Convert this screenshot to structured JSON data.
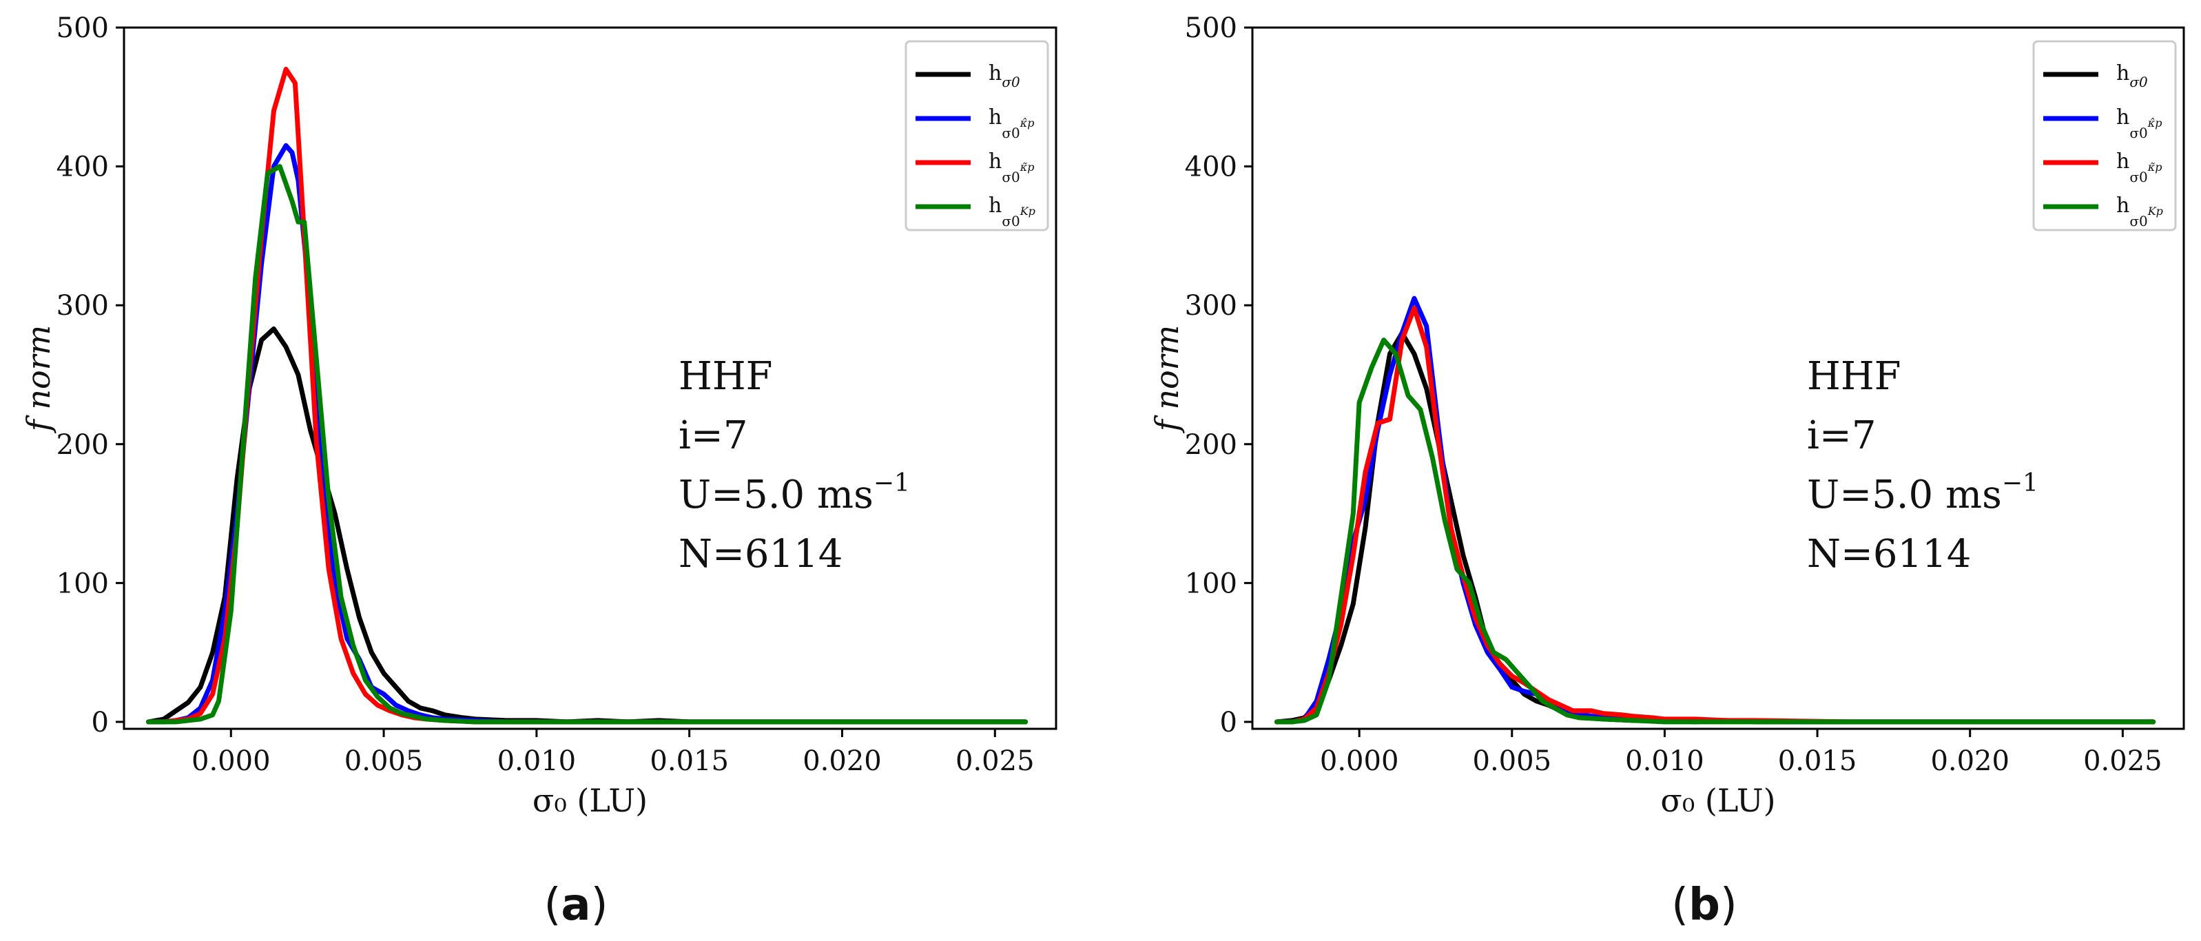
{
  "chart_data": [
    {
      "id": "a",
      "type": "line",
      "caption_letter": "a",
      "xlabel": "σ₀ (LU)",
      "ylabel": "f norm",
      "xlim": [
        -0.0035,
        0.027
      ],
      "ylim": [
        -5,
        500
      ],
      "xticks": [
        0.0,
        0.005,
        0.01,
        0.015,
        0.02,
        0.025
      ],
      "xtick_labels": [
        "0.000",
        "0.005",
        "0.010",
        "0.015",
        "0.020",
        "0.025"
      ],
      "yticks": [
        0,
        100,
        200,
        300,
        400,
        500
      ],
      "ytick_labels": [
        "0",
        "100",
        "200",
        "300",
        "400",
        "500"
      ],
      "annotation": [
        "HHF",
        "i=7",
        "U=5.0 ms",
        "N=6114"
      ],
      "annotation_superscript": "−1",
      "legend_position": "top-right",
      "series": [
        {
          "name": "h σ0",
          "label_sub": "σ0",
          "color": "#000000",
          "x": [
            -0.0027,
            -0.0022,
            -0.0018,
            -0.0014,
            -0.001,
            -0.0006,
            -0.0002,
            0.0002,
            0.0006,
            0.001,
            0.0014,
            0.0018,
            0.0022,
            0.0026,
            0.003,
            0.0034,
            0.0038,
            0.0042,
            0.0046,
            0.005,
            0.0054,
            0.0058,
            0.0062,
            0.0066,
            0.007,
            0.0076,
            0.008,
            0.009,
            0.01,
            0.011,
            0.012,
            0.013,
            0.014,
            0.015,
            0.026
          ],
          "values": [
            0,
            2,
            8,
            14,
            25,
            50,
            90,
            175,
            240,
            275,
            283,
            270,
            250,
            210,
            180,
            150,
            110,
            75,
            50,
            35,
            25,
            15,
            10,
            8,
            5,
            3,
            2,
            1,
            1,
            0,
            1,
            0,
            1,
            0,
            0
          ]
        },
        {
          "name": "h σ0 κ̂p",
          "label_sub": "σ0",
          "label_subsub": "κ̂p",
          "color": "#0000ff",
          "x": [
            -0.0027,
            -0.0022,
            -0.0018,
            -0.0014,
            -0.001,
            -0.0006,
            -0.0002,
            0.0002,
            0.0006,
            0.001,
            0.0014,
            0.0018,
            0.002,
            0.0022,
            0.0026,
            0.003,
            0.0034,
            0.0038,
            0.0042,
            0.0046,
            0.005,
            0.0054,
            0.0058,
            0.0062,
            0.0066,
            0.007,
            0.008,
            0.009,
            0.01,
            0.026
          ],
          "values": [
            0,
            0,
            1,
            3,
            10,
            30,
            80,
            150,
            240,
            330,
            400,
            415,
            410,
            390,
            300,
            170,
            100,
            60,
            45,
            25,
            20,
            12,
            8,
            5,
            3,
            2,
            1,
            0,
            0,
            0
          ]
        },
        {
          "name": "h σ0 κ̃p",
          "label_sub": "σ0",
          "label_subsub": "κ̃p",
          "color": "#ff0000",
          "x": [
            -0.0027,
            -0.0022,
            -0.0018,
            -0.0014,
            -0.001,
            -0.0006,
            -0.0002,
            0.0002,
            0.0006,
            0.001,
            0.0014,
            0.0018,
            0.0021,
            0.0024,
            0.0028,
            0.0032,
            0.0036,
            0.004,
            0.0044,
            0.0048,
            0.0052,
            0.0056,
            0.006,
            0.0064,
            0.007,
            0.008,
            0.026
          ],
          "values": [
            0,
            0,
            1,
            2,
            6,
            20,
            60,
            140,
            250,
            350,
            440,
            470,
            460,
            350,
            200,
            110,
            60,
            35,
            20,
            12,
            8,
            5,
            3,
            2,
            1,
            0,
            0
          ]
        },
        {
          "name": "h σ0 Kp",
          "label_sub": "σ0",
          "label_subsub": "Kp",
          "color": "#008000",
          "x": [
            -0.0027,
            -0.0022,
            -0.0018,
            -0.0014,
            -0.001,
            -0.0006,
            -0.0004,
            0.0,
            0.0004,
            0.0008,
            0.0012,
            0.0016,
            0.002,
            0.0022,
            0.0024,
            0.0028,
            0.0032,
            0.0036,
            0.004,
            0.0044,
            0.0048,
            0.0052,
            0.0056,
            0.006,
            0.0064,
            0.007,
            0.008,
            0.026
          ],
          "values": [
            0,
            0,
            0,
            1,
            2,
            5,
            15,
            80,
            200,
            320,
            395,
            400,
            375,
            360,
            360,
            260,
            160,
            90,
            55,
            30,
            18,
            10,
            6,
            4,
            2,
            1,
            0,
            0
          ]
        }
      ]
    },
    {
      "id": "b",
      "type": "line",
      "caption_letter": "b",
      "xlabel": "σ₀ (LU)",
      "ylabel": "f norm",
      "xlim": [
        -0.0035,
        0.027
      ],
      "ylim": [
        -5,
        500
      ],
      "xticks": [
        0.0,
        0.005,
        0.01,
        0.015,
        0.02,
        0.025
      ],
      "xtick_labels": [
        "0.000",
        "0.005",
        "0.010",
        "0.015",
        "0.020",
        "0.025"
      ],
      "yticks": [
        0,
        100,
        200,
        300,
        400,
        500
      ],
      "ytick_labels": [
        "0",
        "100",
        "200",
        "300",
        "400",
        "500"
      ],
      "annotation": [
        "HHF",
        "i=7",
        "U=5.0 ms",
        "N=6114"
      ],
      "annotation_superscript": "−1",
      "legend_position": "top-right",
      "series": [
        {
          "name": "h σ0",
          "label_sub": "σ0",
          "color": "#000000",
          "x": [
            -0.0027,
            -0.0022,
            -0.0018,
            -0.0014,
            -0.001,
            -0.0006,
            -0.0002,
            0.0002,
            0.0006,
            0.001,
            0.0014,
            0.0018,
            0.0022,
            0.0026,
            0.003,
            0.0034,
            0.0038,
            0.0042,
            0.0046,
            0.005,
            0.0054,
            0.0058,
            0.0062,
            0.0066,
            0.007,
            0.0074,
            0.008,
            0.009,
            0.01,
            0.011,
            0.012,
            0.013,
            0.014,
            0.026
          ],
          "values": [
            0,
            1,
            3,
            12,
            30,
            55,
            85,
            140,
            215,
            265,
            280,
            265,
            240,
            200,
            160,
            120,
            90,
            55,
            40,
            30,
            20,
            15,
            12,
            8,
            5,
            3,
            2,
            1,
            1,
            0,
            1,
            0,
            0,
            0
          ]
        },
        {
          "name": "h σ0 κ̂p",
          "label_sub": "σ0",
          "label_subsub": "κ̂p",
          "color": "#0000ff",
          "x": [
            -0.0027,
            -0.0022,
            -0.0018,
            -0.0014,
            -0.001,
            -0.0006,
            -0.0002,
            0.0002,
            0.0006,
            0.001,
            0.0014,
            0.0018,
            0.0022,
            0.0026,
            0.003,
            0.0034,
            0.0038,
            0.0042,
            0.0046,
            0.005,
            0.0054,
            0.0058,
            0.0062,
            0.0066,
            0.007,
            0.008,
            0.009,
            0.01,
            0.012,
            0.014,
            0.026
          ],
          "values": [
            0,
            0,
            2,
            15,
            45,
            80,
            130,
            160,
            210,
            250,
            280,
            305,
            285,
            210,
            140,
            100,
            70,
            50,
            38,
            25,
            22,
            20,
            15,
            10,
            6,
            3,
            2,
            1,
            1,
            0,
            0
          ]
        },
        {
          "name": "h σ0 κ̃p",
          "label_sub": "σ0",
          "label_subsub": "κ̃p",
          "color": "#ff0000",
          "x": [
            -0.0027,
            -0.0022,
            -0.0018,
            -0.0014,
            -0.001,
            -0.0006,
            -0.0002,
            0.0002,
            0.0006,
            0.001,
            0.0014,
            0.0018,
            0.0022,
            0.0026,
            0.003,
            0.0034,
            0.0038,
            0.0042,
            0.0046,
            0.005,
            0.0054,
            0.0058,
            0.0062,
            0.0066,
            0.007,
            0.0076,
            0.008,
            0.0086,
            0.009,
            0.0096,
            0.01,
            0.011,
            0.012,
            0.013,
            0.016,
            0.026
          ],
          "values": [
            0,
            0,
            2,
            10,
            35,
            70,
            120,
            180,
            215,
            218,
            275,
            298,
            270,
            200,
            140,
            105,
            75,
            55,
            42,
            33,
            28,
            22,
            16,
            12,
            8,
            8,
            6,
            5,
            4,
            3,
            2,
            2,
            1,
            1,
            0,
            0
          ]
        },
        {
          "name": "h σ0 Kp",
          "label_sub": "σ0",
          "label_subsub": "Kp",
          "color": "#008000",
          "x": [
            -0.0027,
            -0.0022,
            -0.0018,
            -0.0014,
            -0.001,
            -0.0006,
            -0.0002,
            0.0,
            0.0004,
            0.0008,
            0.0012,
            0.0016,
            0.002,
            0.0024,
            0.0028,
            0.0032,
            0.0036,
            0.004,
            0.0044,
            0.0048,
            0.0052,
            0.0056,
            0.006,
            0.0064,
            0.0068,
            0.0072,
            0.008,
            0.009,
            0.01,
            0.026
          ],
          "values": [
            0,
            0,
            1,
            5,
            30,
            90,
            150,
            230,
            255,
            275,
            265,
            235,
            225,
            190,
            145,
            110,
            100,
            70,
            50,
            45,
            35,
            25,
            15,
            10,
            5,
            3,
            2,
            1,
            0,
            0
          ]
        }
      ]
    }
  ]
}
